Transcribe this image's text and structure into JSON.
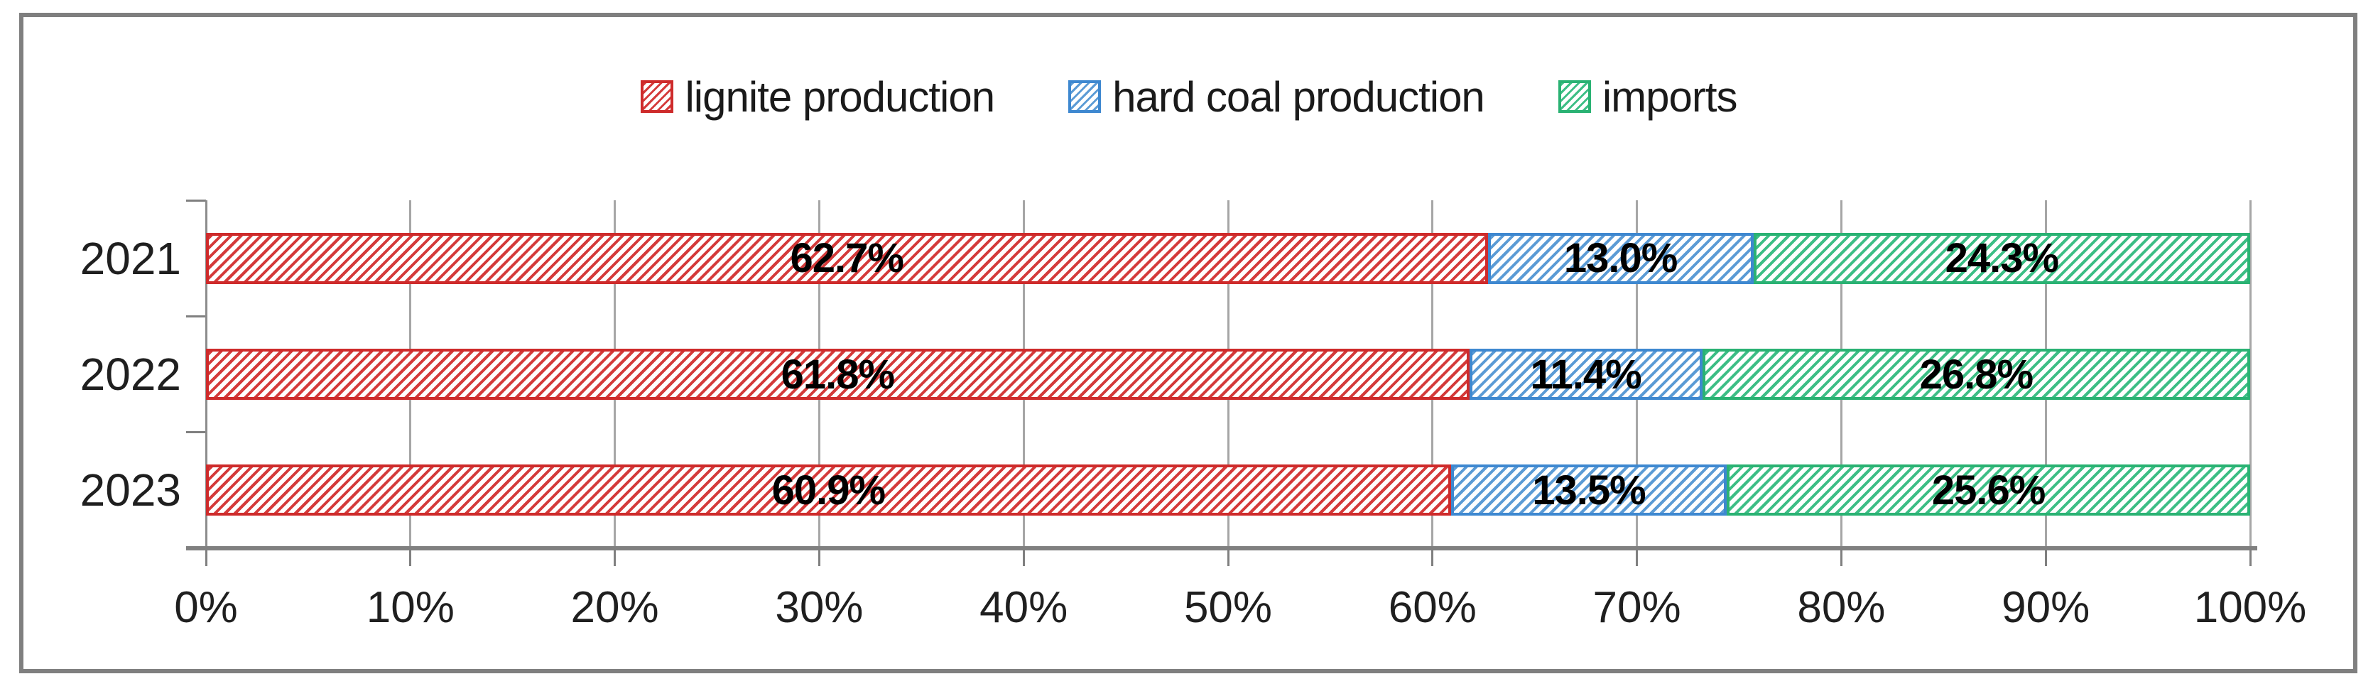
{
  "chart_data": {
    "type": "bar",
    "subtype": "100%-stacked-horizontal",
    "title": "",
    "xlabel": "",
    "ylabel": "",
    "xlim": [
      0,
      100
    ],
    "grid": true,
    "legend_position": "top",
    "categories": [
      "2021",
      "2022",
      "2023"
    ],
    "x_ticks": [
      "0%",
      "10%",
      "20%",
      "30%",
      "40%",
      "50%",
      "60%",
      "70%",
      "80%",
      "90%",
      "100%"
    ],
    "series": [
      {
        "name": "lignite production",
        "values": [
          62.7,
          61.8,
          60.9
        ],
        "labels": [
          "62.7%",
          "61.8%",
          "60.9%"
        ],
        "stripe_color": "#d43a3a",
        "border_color": "#ce2b2b",
        "pattern": "diagonal-hatch"
      },
      {
        "name": "hard coal production",
        "values": [
          13.0,
          11.4,
          13.5
        ],
        "labels": [
          "13.0%",
          "11.4%",
          "13.5%"
        ],
        "stripe_color": "#5b9bd5",
        "border_color": "#3e88d0",
        "pattern": "diagonal-hatch"
      },
      {
        "name": "imports",
        "values": [
          24.3,
          26.8,
          25.6
        ],
        "labels": [
          "24.3%",
          "26.8%",
          "25.6%"
        ],
        "stripe_color": "#3cbe85",
        "border_color": "#2ab273",
        "pattern": "diagonal-hatch"
      }
    ],
    "colors": {
      "gridline": "#a6a6a6",
      "axis": "#808080",
      "frame_border": "#7f7f7f",
      "label_text": "#1f1f1f",
      "data_label_text": "#000000",
      "background": "#ffffff"
    }
  }
}
